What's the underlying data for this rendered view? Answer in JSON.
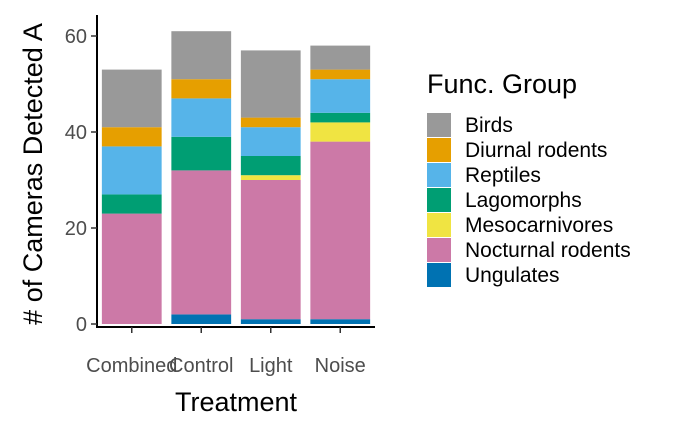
{
  "chart_data": {
    "type": "bar",
    "stacked": true,
    "title": "",
    "xlabel": "Treatment",
    "ylabel": "# of Cameras Detected A",
    "ylim": [
      0,
      64
    ],
    "yticks": [
      0,
      20,
      40,
      60
    ],
    "grid": false,
    "legend_position": "right",
    "legend_title": "Func. Group",
    "categories": [
      "Combined",
      "Control",
      "Light",
      "Noise"
    ],
    "series": [
      {
        "name": "Birds",
        "color": "#999999",
        "values": [
          12,
          10,
          14,
          5
        ]
      },
      {
        "name": "Diurnal rodents",
        "color": "#E69F00",
        "values": [
          4,
          4,
          2,
          2
        ]
      },
      {
        "name": "Reptiles",
        "color": "#56B4E9",
        "values": [
          10,
          8,
          6,
          7
        ]
      },
      {
        "name": "Lagomorphs",
        "color": "#009E73",
        "values": [
          4,
          7,
          4,
          2
        ]
      },
      {
        "name": "Mesocarnivores",
        "color": "#F0E442",
        "values": [
          0,
          0,
          1,
          4
        ]
      },
      {
        "name": "Nocturnal rodents",
        "color": "#CC79A7",
        "values": [
          23,
          30,
          29,
          37
        ]
      },
      {
        "name": "Ungulates",
        "color": "#0072B2",
        "values": [
          0,
          2,
          1,
          1
        ]
      }
    ]
  }
}
